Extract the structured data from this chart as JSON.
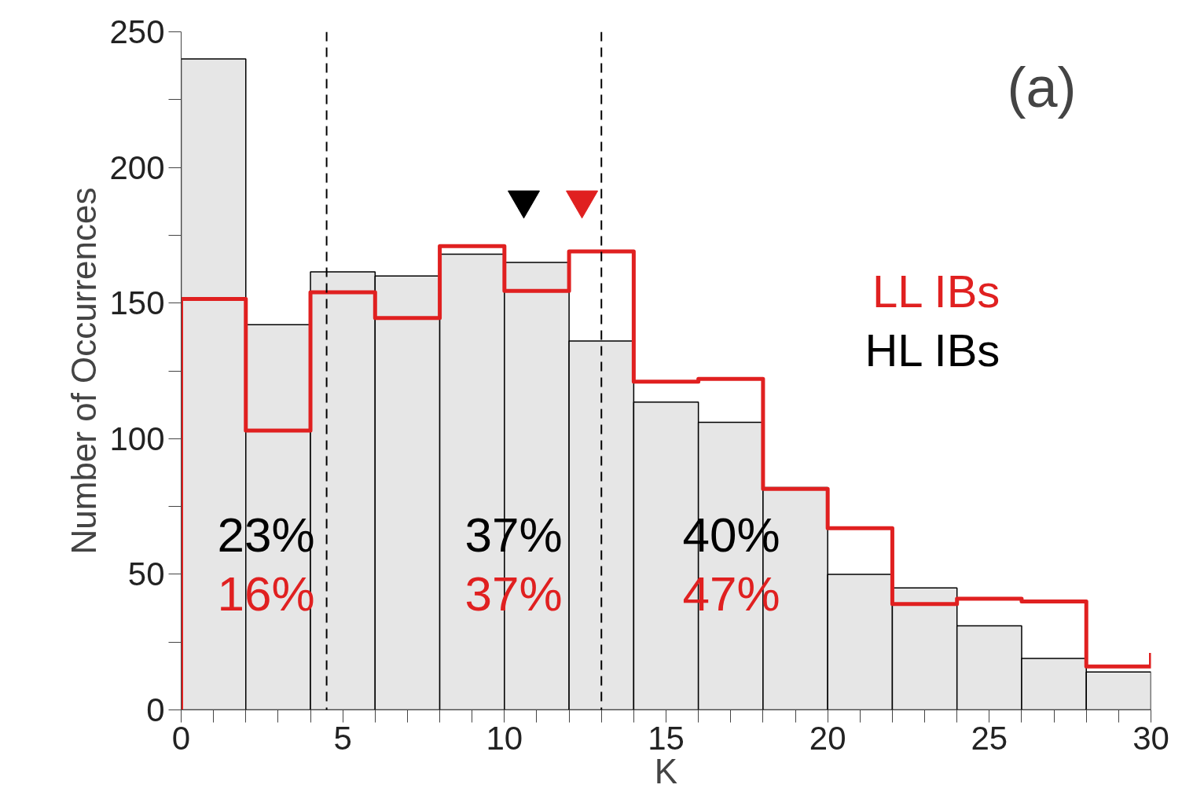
{
  "chart_data": {
    "type": "histogram",
    "xlabel": "K",
    "ylabel": "Number of Occurrences",
    "bins": [
      0,
      2,
      4,
      6,
      8,
      10,
      12,
      14,
      16,
      18,
      20,
      22,
      24,
      26,
      28,
      30
    ],
    "series": [
      {
        "name": "LL IBs",
        "type": "step",
        "color": "#e02020",
        "x": [
          0,
          0,
          2,
          4,
          6,
          8,
          10,
          12,
          14,
          16,
          18,
          20,
          22,
          24,
          26,
          28,
          30
        ],
        "values": [
          0,
          151.5,
          103,
          154,
          144.5,
          171,
          154.5,
          169,
          121,
          122,
          81.5,
          67,
          39,
          41,
          40,
          16,
          21
        ]
      },
      {
        "name": "HL IBs",
        "color": "#000000",
        "values": [
          240,
          142,
          161.5,
          160,
          168,
          165,
          136,
          113.5,
          106,
          82,
          50,
          45,
          31,
          19,
          14
        ]
      },
      {
        "type": "scatter",
        "marker": "triangle",
        "color": "#000000",
        "x": [
          10.6
        ],
        "values": [
          188
        ]
      },
      {
        "type": "scatter",
        "marker": "triangle",
        "color": "#e02020",
        "x": [
          12.4
        ],
        "values": [
          188
        ]
      }
    ],
    "xlim": [
      0,
      30
    ],
    "ylim": [
      0,
      250
    ],
    "xticks": [
      0,
      {
        "value": 1,
        "label": null
      },
      {
        "value": 2,
        "label": null
      },
      {
        "value": 3,
        "label": null
      },
      {
        "value": 4,
        "label": null
      },
      5,
      {
        "value": 6,
        "label": null
      },
      {
        "value": 7,
        "label": null
      },
      {
        "value": 8,
        "label": null
      },
      {
        "value": 9,
        "label": null
      },
      10,
      {
        "value": 11,
        "label": null
      },
      {
        "value": 12,
        "label": null
      },
      {
        "value": 13,
        "label": null
      },
      {
        "value": 14,
        "label": null
      },
      15,
      {
        "value": 16,
        "label": null
      },
      {
        "value": 17,
        "label": null
      },
      {
        "value": 18,
        "label": null
      },
      {
        "value": 19,
        "label": null
      },
      20,
      {
        "value": 21,
        "label": null
      },
      {
        "value": 22,
        "label": null
      },
      {
        "value": 23,
        "label": null
      },
      {
        "value": 24,
        "label": null
      },
      25,
      {
        "value": 26,
        "label": null
      },
      {
        "value": 27,
        "label": null
      },
      {
        "value": 28,
        "label": null
      },
      {
        "value": 29,
        "label": null
      },
      30
    ],
    "yticks": [
      0,
      {
        "value": 25,
        "label": null
      },
      50,
      {
        "value": 75,
        "label": null
      },
      100,
      {
        "value": 125,
        "label": null
      },
      150,
      {
        "value": 175,
        "label": null
      },
      200,
      {
        "value": 225,
        "label": null
      },
      250
    ],
    "ref_lines": [
      {
        "axis": "x",
        "value": 4.5,
        "color": "#000000",
        "line_style": "dashed"
      },
      {
        "axis": "x",
        "value": 13,
        "color": "#000000",
        "line_style": "dashed"
      }
    ],
    "annotations": [
      "(a)",
      "23%",
      "16%",
      "37%",
      "37%",
      "40%",
      "47%"
    ],
    "legend": "right",
    "grid": false
  }
}
